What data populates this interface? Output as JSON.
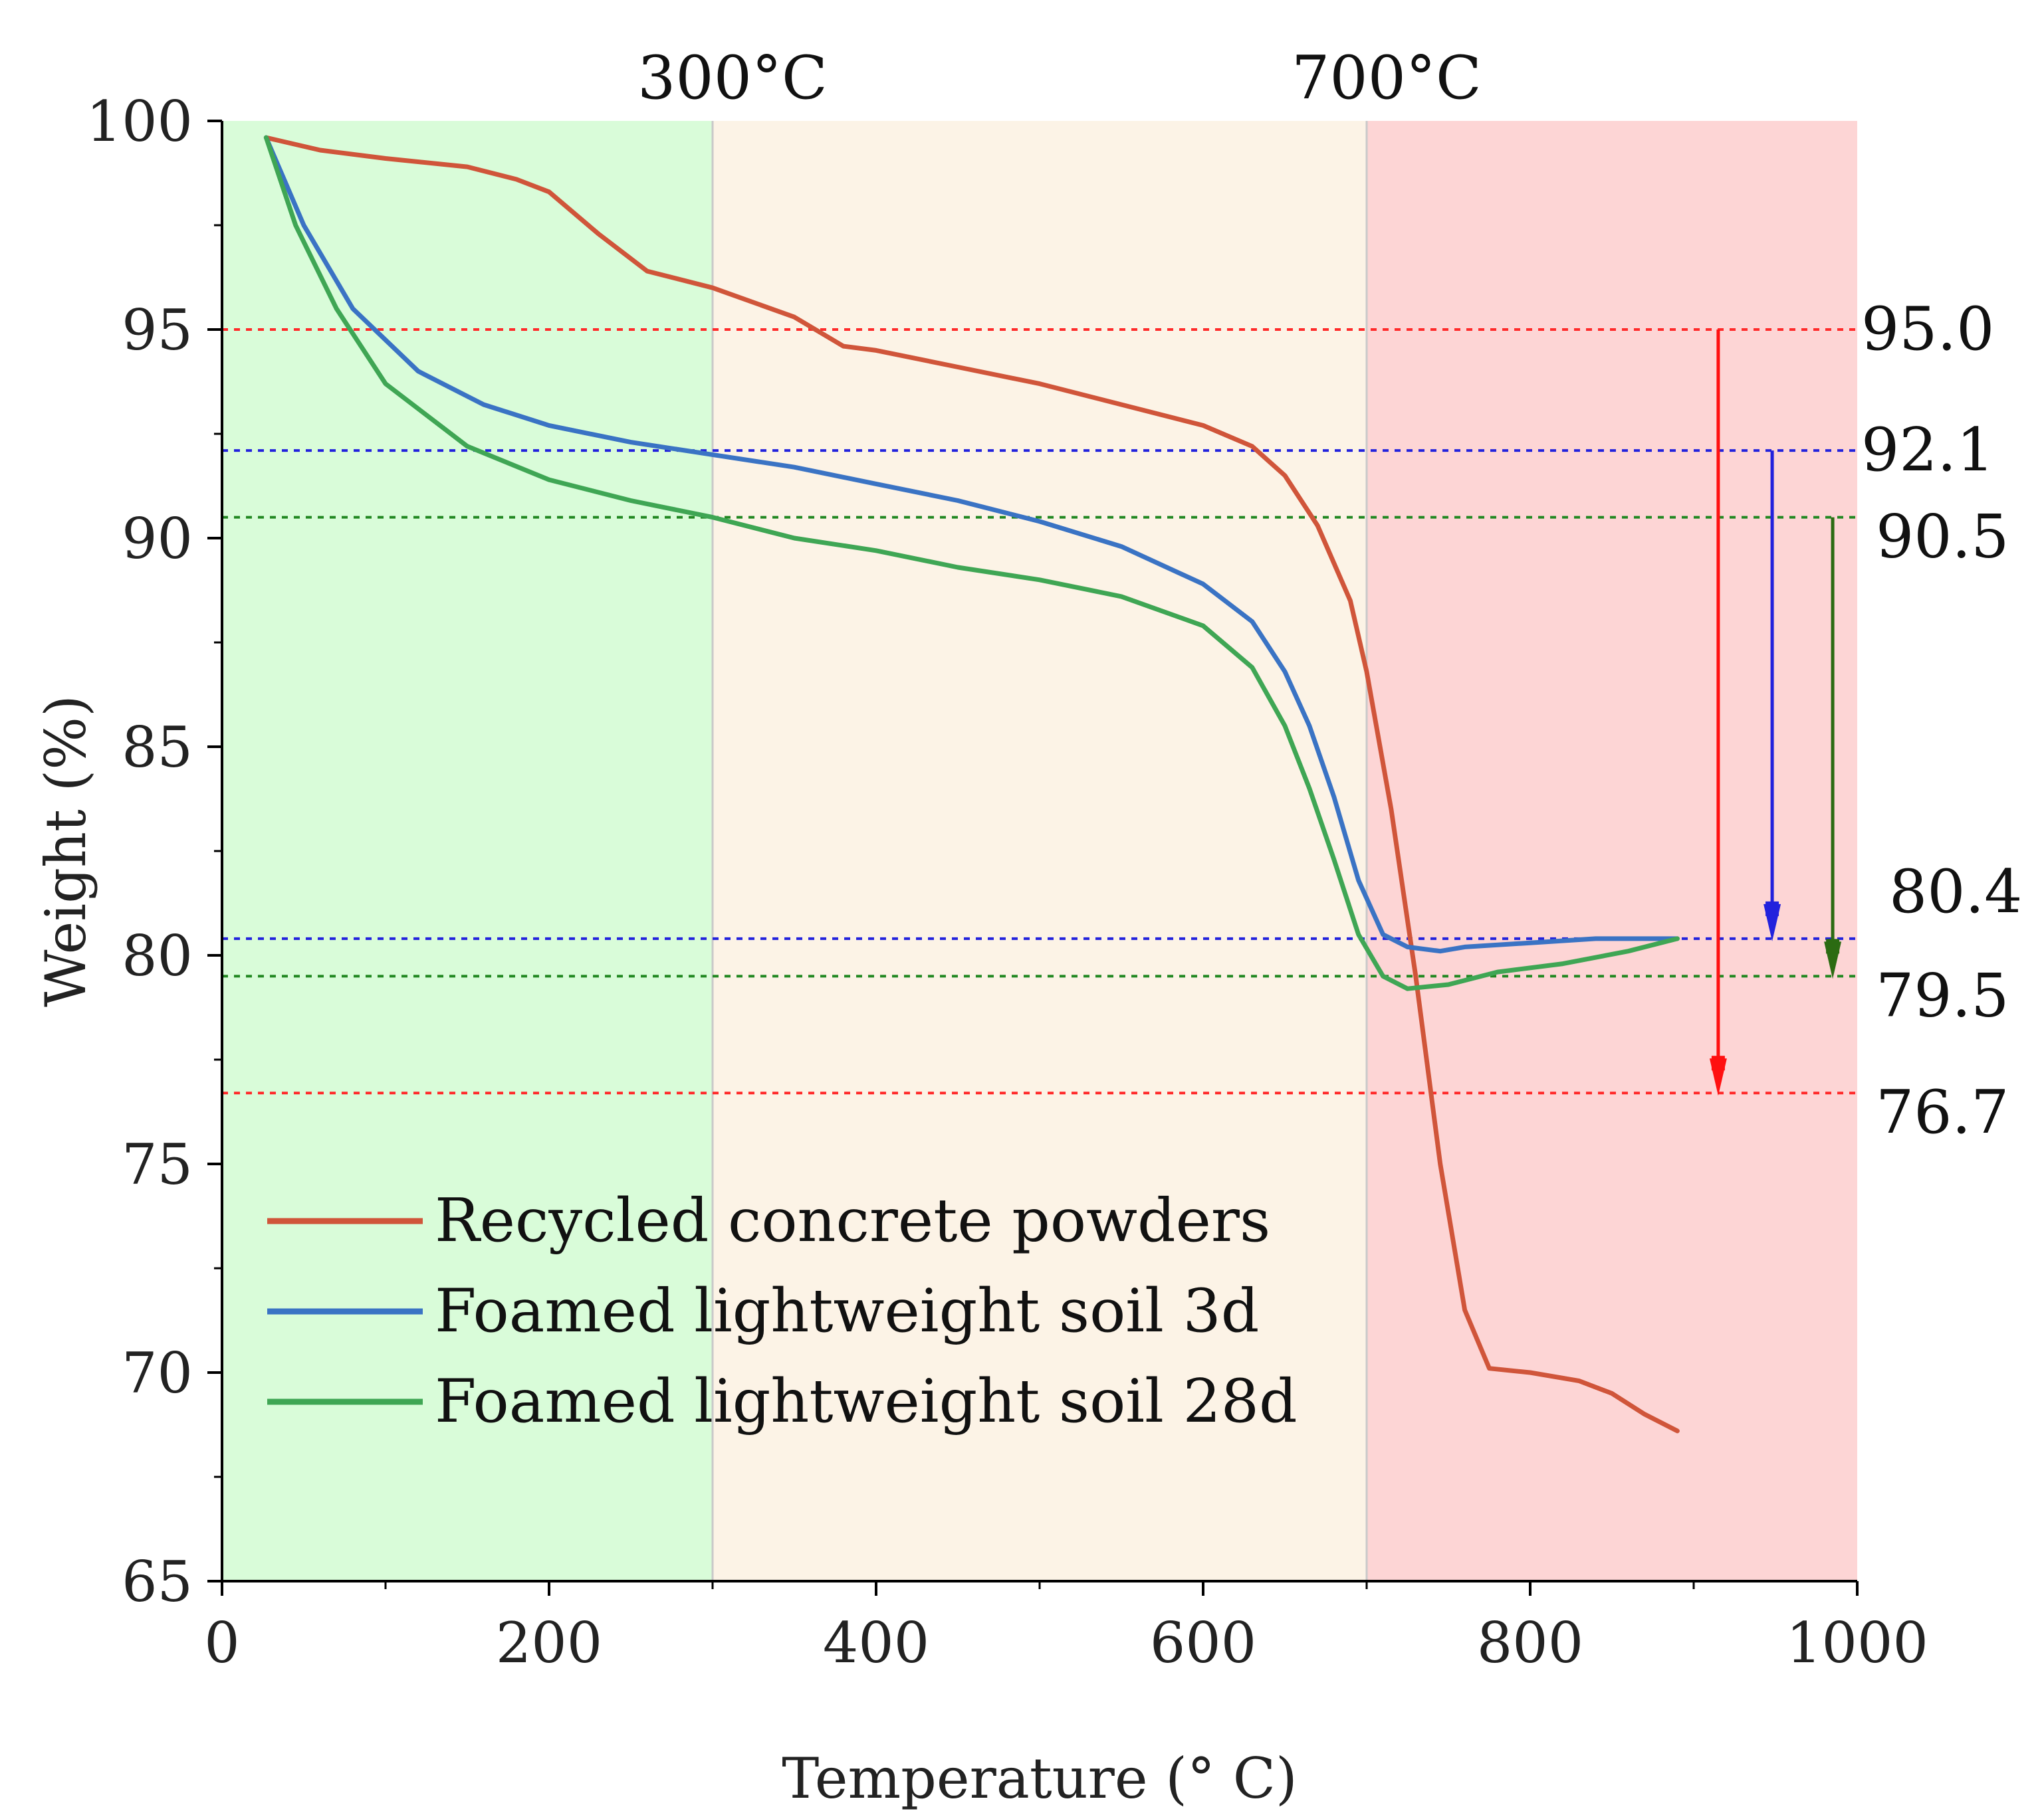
{
  "chart_data": {
    "type": "line",
    "title": "",
    "xlabel": "Temperature (° C)",
    "ylabel": "Weight (%)",
    "xlim": [
      0,
      1000
    ],
    "ylim": [
      65,
      100
    ],
    "x_ticks": [
      0,
      200,
      400,
      600,
      800,
      1000
    ],
    "y_ticks": [
      65,
      70,
      75,
      80,
      85,
      90,
      95,
      100
    ],
    "regions": [
      {
        "name": "low",
        "x_start": 0,
        "x_end": 300,
        "color": "#d9fcd9"
      },
      {
        "name": "mid",
        "x_start": 300,
        "x_end": 700,
        "color": "#fcf3e6",
        "top_label": "300°C"
      },
      {
        "name": "high",
        "x_start": 700,
        "x_end": 1000,
        "color": "#fdd5d5",
        "top_label": "700°C"
      }
    ],
    "series": [
      {
        "name": "Recycled concrete powders",
        "color": "#d0553a",
        "points": [
          [
            27,
            99.6
          ],
          [
            60,
            99.3
          ],
          [
            100,
            99.1
          ],
          [
            150,
            98.9
          ],
          [
            180,
            98.6
          ],
          [
            200,
            98.3
          ],
          [
            230,
            97.3
          ],
          [
            260,
            96.4
          ],
          [
            300,
            96.0
          ],
          [
            350,
            95.3
          ],
          [
            380,
            94.6
          ],
          [
            400,
            94.5
          ],
          [
            450,
            94.1
          ],
          [
            500,
            93.7
          ],
          [
            550,
            93.2
          ],
          [
            600,
            92.7
          ],
          [
            630,
            92.2
          ],
          [
            650,
            91.5
          ],
          [
            670,
            90.3
          ],
          [
            690,
            88.5
          ],
          [
            700,
            86.8
          ],
          [
            715,
            83.5
          ],
          [
            730,
            79.5
          ],
          [
            745,
            75.0
          ],
          [
            760,
            71.5
          ],
          [
            775,
            70.1
          ],
          [
            800,
            70.0
          ],
          [
            830,
            69.8
          ],
          [
            850,
            69.5
          ],
          [
            870,
            69.0
          ],
          [
            890,
            68.6
          ]
        ]
      },
      {
        "name": "Foamed lightweight soil 3d",
        "color": "#3a73c4",
        "points": [
          [
            27,
            99.6
          ],
          [
            50,
            97.5
          ],
          [
            80,
            95.5
          ],
          [
            120,
            94.0
          ],
          [
            160,
            93.2
          ],
          [
            200,
            92.7
          ],
          [
            250,
            92.3
          ],
          [
            300,
            92.0
          ],
          [
            350,
            91.7
          ],
          [
            400,
            91.3
          ],
          [
            450,
            90.9
          ],
          [
            500,
            90.4
          ],
          [
            550,
            89.8
          ],
          [
            600,
            88.9
          ],
          [
            630,
            88.0
          ],
          [
            650,
            86.8
          ],
          [
            665,
            85.5
          ],
          [
            680,
            83.8
          ],
          [
            695,
            81.8
          ],
          [
            710,
            80.5
          ],
          [
            725,
            80.2
          ],
          [
            745,
            80.1
          ],
          [
            760,
            80.2
          ],
          [
            800,
            80.3
          ],
          [
            840,
            80.4
          ],
          [
            870,
            80.4
          ],
          [
            890,
            80.4
          ]
        ]
      },
      {
        "name": "Foamed lightweight soil 28d",
        "color": "#3fa654",
        "points": [
          [
            27,
            99.6
          ],
          [
            45,
            97.5
          ],
          [
            70,
            95.5
          ],
          [
            100,
            93.7
          ],
          [
            150,
            92.2
          ],
          [
            200,
            91.4
          ],
          [
            250,
            90.9
          ],
          [
            300,
            90.5
          ],
          [
            350,
            90.0
          ],
          [
            400,
            89.7
          ],
          [
            450,
            89.3
          ],
          [
            500,
            89.0
          ],
          [
            550,
            88.6
          ],
          [
            600,
            87.9
          ],
          [
            630,
            86.9
          ],
          [
            650,
            85.5
          ],
          [
            665,
            84.0
          ],
          [
            680,
            82.3
          ],
          [
            695,
            80.5
          ],
          [
            710,
            79.5
          ],
          [
            725,
            79.2
          ],
          [
            750,
            79.3
          ],
          [
            780,
            79.6
          ],
          [
            820,
            79.8
          ],
          [
            860,
            80.1
          ],
          [
            890,
            80.4
          ]
        ]
      }
    ],
    "reference_lines": [
      {
        "y": 95.0,
        "color": "#ff2a2a",
        "label": "95.0"
      },
      {
        "y": 92.1,
        "color": "#2222dd",
        "label": "92.1"
      },
      {
        "y": 90.5,
        "color": "#228822",
        "label": "90.5"
      },
      {
        "y": 80.4,
        "color": "#2222dd",
        "label": "80.4"
      },
      {
        "y": 79.5,
        "color": "#228822",
        "label": "79.5"
      },
      {
        "y": 76.7,
        "color": "#ff2a2a",
        "label": "76.7"
      }
    ],
    "arrows": [
      {
        "x": 915,
        "y_from": 95.0,
        "y_to": 76.7,
        "color": "#ff1010"
      },
      {
        "x": 948,
        "y_from": 92.1,
        "y_to": 80.4,
        "color": "#2222dd"
      },
      {
        "x": 985,
        "y_from": 90.5,
        "y_to": 79.5,
        "color": "#2b6b12"
      }
    ],
    "legend_position": "bottom-left"
  }
}
